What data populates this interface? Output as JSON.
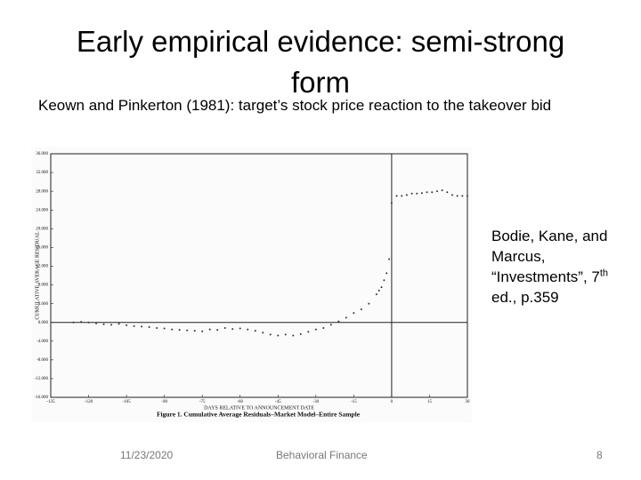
{
  "slide": {
    "title": "Early empirical evidence: semi-strong form",
    "subtitle": "Keown and Pinkerton (1981): target’s stock price reaction to the takeover bid",
    "source": {
      "before": "Bodie, Kane, and Marcus, “Investments”, 7",
      "sup": "th",
      "after": " ed., p.359"
    },
    "footer": {
      "date": "11/23/2020",
      "center": "Behavioral Finance",
      "page": "8"
    }
  },
  "chart_data": {
    "type": "scatter",
    "caption": "Figure 1. Cumulative Average Residuals–Market Model–Entire Sample",
    "x_label": "DAYS RELATIVE TO ANNOUNCEMENT DATE",
    "y_label": "CUMULATIVE AVERAGE RESIDUAL",
    "xlim": [
      -135,
      30
    ],
    "xticks": [
      -135,
      -120,
      -105,
      -90,
      -75,
      -60,
      -45,
      -30,
      -15,
      0,
      15,
      30
    ],
    "ylim": [
      -16,
      36
    ],
    "yticks": [
      {
        "value": 36,
        "label": "36.000"
      },
      {
        "value": 32,
        "label": "32.000"
      },
      {
        "value": 28,
        "label": "28.000"
      },
      {
        "value": 24,
        "label": "24.000"
      },
      {
        "value": 20,
        "label": "20.000"
      },
      {
        "value": 16,
        "label": "16.000"
      },
      {
        "value": 12,
        "label": "12.000"
      },
      {
        "value": 8,
        "label": "8.000"
      },
      {
        "value": 4,
        "label": "4.000"
      },
      {
        "value": 0,
        "label": "0.000"
      },
      {
        "value": -4,
        "label": "-4.000"
      },
      {
        "value": -8,
        "label": "-8.000"
      },
      {
        "value": -12,
        "label": "-12.000"
      },
      {
        "value": -16,
        "label": "-16.000"
      }
    ],
    "color": "#333333",
    "x": [
      -126,
      -123,
      -120,
      -117,
      -114,
      -111,
      -108,
      -105,
      -102,
      -99,
      -96,
      -93,
      -90,
      -87,
      -84,
      -81,
      -78,
      -75,
      -72,
      -69,
      -66,
      -63,
      -60,
      -57,
      -54,
      -51,
      -48,
      -45,
      -42,
      -39,
      -36,
      -33,
      -30,
      -27,
      -24,
      -21,
      -18,
      -15,
      -12,
      -9,
      -6,
      -5,
      -4,
      -3,
      -2,
      -1,
      0,
      2,
      4,
      6,
      8,
      10,
      12,
      14,
      16,
      18,
      20,
      22,
      24,
      26,
      28,
      30
    ],
    "values": [
      0,
      0.1,
      0,
      -0.2,
      -0.4,
      -0.5,
      -0.3,
      -0.6,
      -0.8,
      -0.9,
      -1.0,
      -1.2,
      -1.3,
      -1.5,
      -1.6,
      -1.7,
      -1.8,
      -1.9,
      -1.5,
      -1.6,
      -1.2,
      -1.4,
      -1.3,
      -1.5,
      -1.8,
      -2.2,
      -2.6,
      -2.8,
      -2.6,
      -2.8,
      -2.5,
      -2.0,
      -1.5,
      -1.2,
      -0.5,
      0.2,
      1.0,
      2.0,
      2.8,
      4.0,
      6.0,
      6.8,
      7.5,
      9,
      10.5,
      13.5,
      25.5,
      27,
      27,
      27.2,
      27.5,
      27.5,
      27.6,
      27.8,
      27.8,
      28,
      28.2,
      27.8,
      27.2,
      27,
      27,
      27
    ]
  }
}
